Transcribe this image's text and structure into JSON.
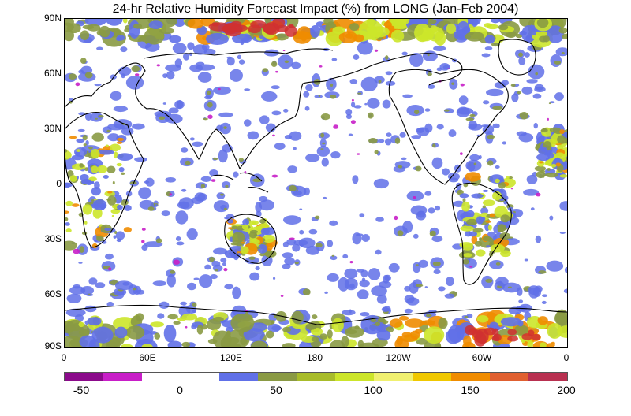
{
  "title": "24-hr Relative Humidity Forecast Impact (%) from LONG (Jan-Feb 2004)",
  "lat_labels": [
    "90N",
    "60N",
    "30N",
    "0",
    "30S",
    "60S",
    "90S"
  ],
  "lon_labels": [
    "0",
    "60E",
    "120E",
    "180",
    "120W",
    "60W",
    "0"
  ],
  "colorbar": {
    "colors": [
      "#8b0a8b",
      "#c81ec8",
      "#ffffff",
      "#ffffff",
      "#6070e8",
      "#8a9a44",
      "#a8bc2a",
      "#cce52a",
      "#f0f070",
      "#f0c800",
      "#f08c00",
      "#e06030",
      "#b83050"
    ],
    "labels": [
      "-50",
      "0",
      "50",
      "100",
      "150",
      "200"
    ]
  },
  "map": {
    "background": "#ffffff",
    "coastline_color": "#000000",
    "impact_colors": {
      "negative": "#c81ec8",
      "low": "#6070e8",
      "moderate": "#8a9a44",
      "high": "#cce52a",
      "very_high": "#f08c00",
      "extreme": "#d03030"
    }
  }
}
